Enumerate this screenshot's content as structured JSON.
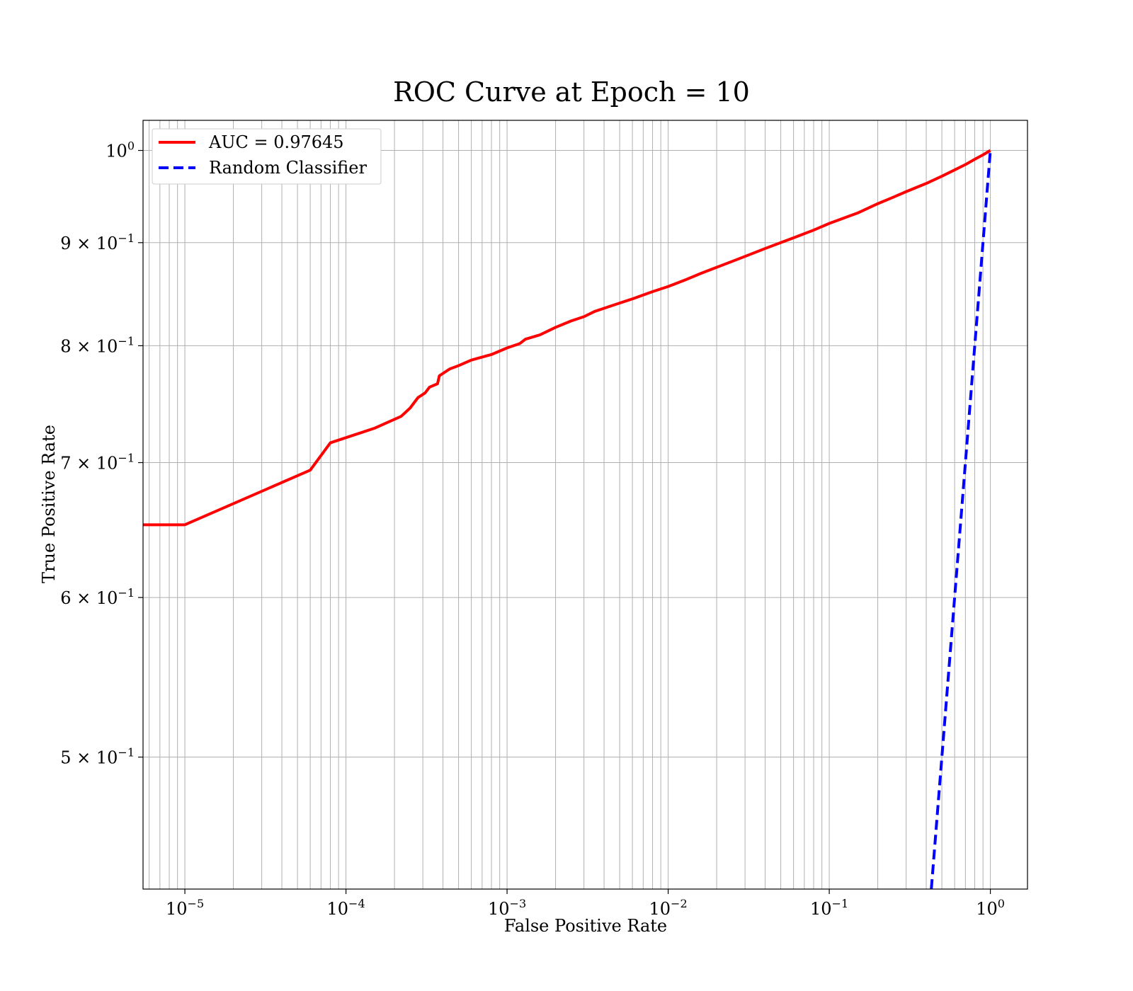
{
  "chart_data": {
    "type": "line",
    "title": "ROC Curve at Epoch = 10",
    "xlabel": "False Positive Rate",
    "ylabel": "True Positive Rate",
    "xscale": "log",
    "yscale": "log",
    "xlim": [
      5.5e-06,
      1.7
    ],
    "ylim": [
      0.43,
      1.035
    ],
    "grid": true,
    "grid_minor": true,
    "legend_position": "top-left",
    "x_ticks": [
      {
        "value": 1e-05,
        "base": "10",
        "exp": "−5"
      },
      {
        "value": 0.0001,
        "base": "10",
        "exp": "−4"
      },
      {
        "value": 0.001,
        "base": "10",
        "exp": "−3"
      },
      {
        "value": 0.01,
        "base": "10",
        "exp": "−2"
      },
      {
        "value": 0.1,
        "base": "10",
        "exp": "−1"
      },
      {
        "value": 1,
        "base": "10",
        "exp": "0"
      }
    ],
    "y_ticks": [
      {
        "value": 1.0,
        "mant": "",
        "base": "10",
        "exp": "0"
      },
      {
        "value": 0.9,
        "mant": "9 × ",
        "base": "10",
        "exp": "−1"
      },
      {
        "value": 0.8,
        "mant": "8 × ",
        "base": "10",
        "exp": "−1"
      },
      {
        "value": 0.7,
        "mant": "7 × ",
        "base": "10",
        "exp": "−1"
      },
      {
        "value": 0.6,
        "mant": "6 × ",
        "base": "10",
        "exp": "−1"
      },
      {
        "value": 0.5,
        "mant": "5 × ",
        "base": "10",
        "exp": "−1"
      }
    ],
    "series": [
      {
        "name": "AUC = 0.97645",
        "color": "#ff0000",
        "style": "solid",
        "x": [
          5.5e-06,
          1e-05,
          6e-05,
          8e-05,
          0.00015,
          0.00022,
          0.00025,
          0.00028,
          0.00031,
          0.00033,
          0.00037,
          0.00038,
          0.00044,
          0.0005,
          0.0006,
          0.0008,
          0.001,
          0.0012,
          0.0013,
          0.0016,
          0.002,
          0.0025,
          0.003,
          0.0035,
          0.004,
          0.005,
          0.006,
          0.008,
          0.01,
          0.013,
          0.016,
          0.02,
          0.025,
          0.03,
          0.04,
          0.05,
          0.06,
          0.08,
          0.1,
          0.15,
          0.2,
          0.25,
          0.3,
          0.4,
          0.5,
          0.6,
          0.7,
          0.8,
          0.9,
          1.0
        ],
        "y": [
          0.652,
          0.652,
          0.694,
          0.716,
          0.728,
          0.738,
          0.745,
          0.754,
          0.758,
          0.763,
          0.766,
          0.773,
          0.779,
          0.782,
          0.787,
          0.792,
          0.798,
          0.802,
          0.806,
          0.81,
          0.817,
          0.823,
          0.827,
          0.832,
          0.835,
          0.84,
          0.844,
          0.851,
          0.856,
          0.863,
          0.869,
          0.875,
          0.881,
          0.886,
          0.894,
          0.9,
          0.905,
          0.913,
          0.92,
          0.931,
          0.941,
          0.948,
          0.954,
          0.963,
          0.971,
          0.978,
          0.984,
          0.99,
          0.995,
          1.0
        ]
      },
      {
        "name": "Random Classifier",
        "color": "#0000ff",
        "style": "dashed",
        "x": [
          0.43,
          1.0
        ],
        "y": [
          0.43,
          1.0
        ]
      }
    ]
  }
}
